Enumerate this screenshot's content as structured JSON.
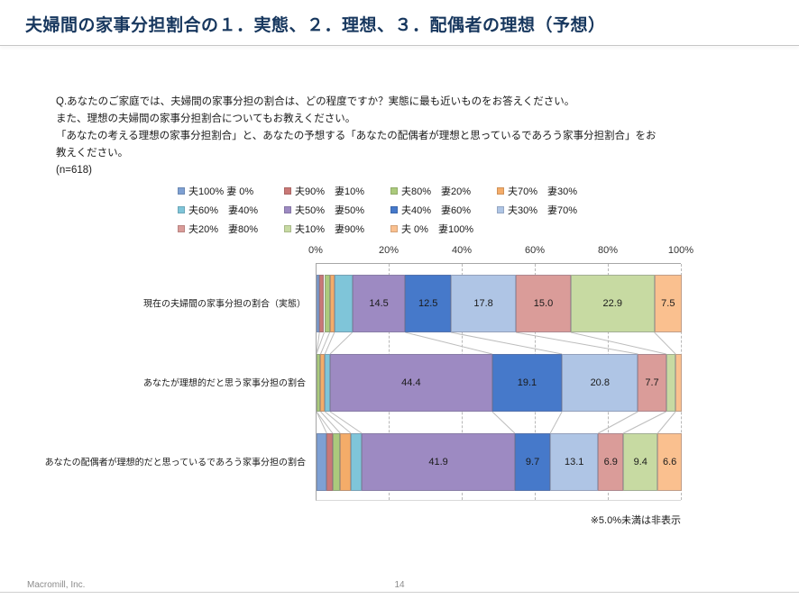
{
  "header": {
    "title": "夫婦間の家事分担割合の１．実態、２．理想、３．配偶者の理想（予想）",
    "title_color": "#17375E"
  },
  "question": {
    "lines": [
      "Q.あなたのご家庭では、夫婦間の家事分担の割合は、どの程度ですか？実態に最も近いものをお答えください。",
      "また、理想の夫婦間の家事分担割合についてもお教えください。",
      "「あなたの考える理想の家事分担割合」と、あなたの予想する「あなたの配偶者が理想と思っているであろう家事分担割合」をお",
      "教えください。",
      "(n=618)"
    ]
  },
  "chart_data": {
    "type": "bar",
    "subtype": "horizontal-stacked",
    "axis": {
      "position": "top",
      "min": 0,
      "max": 100,
      "ticks": [
        "0%",
        "20%",
        "40%",
        "60%",
        "80%",
        "100%"
      ]
    },
    "legend_position": "top",
    "legend_columns": 4,
    "label_threshold": 5.0,
    "note": "※5.0%未満は非表示",
    "categories": [
      "現在の夫婦間の家事分担の割合（実態）",
      "あなたが理想的だと思う家事分担の割合",
      "あなたの配偶者が理想的だと思っているであろう家事分担の割合"
    ],
    "series": [
      {
        "name": "夫100% 妻 0%",
        "color": "#7EA0D3",
        "values": [
          0.8,
          0.0,
          2.8
        ]
      },
      {
        "name": "夫90%　妻10%",
        "color": "#C97876",
        "values": [
          1.3,
          0.0,
          1.6
        ]
      },
      {
        "name": "夫80%　妻20%",
        "color": "#ABCA7C",
        "values": [
          1.5,
          1.1,
          2.1
        ]
      },
      {
        "name": "夫70%　妻30%",
        "color": "#F4AC69",
        "values": [
          1.3,
          1.2,
          2.9
        ]
      },
      {
        "name": "夫60%　妻40%",
        "color": "#7FC5D9",
        "values": [
          4.9,
          1.4,
          3.0
        ]
      },
      {
        "name": "夫50%　妻50%",
        "color": "#9D8AC2",
        "values": [
          14.5,
          44.4,
          41.9
        ]
      },
      {
        "name": "夫40%　妻60%",
        "color": "#4679CA",
        "values": [
          12.5,
          19.1,
          9.7
        ]
      },
      {
        "name": "夫30%　妻70%",
        "color": "#AFC5E5",
        "values": [
          17.8,
          20.8,
          13.1
        ]
      },
      {
        "name": "夫20%　妻80%",
        "color": "#DA9C99",
        "values": [
          15.0,
          7.7,
          6.9
        ]
      },
      {
        "name": "夫10%　妻90%",
        "color": "#C7DAA2",
        "values": [
          22.9,
          2.6,
          9.4
        ]
      },
      {
        "name": "夫 0%　妻100%",
        "color": "#FAC08F",
        "values": [
          7.5,
          1.7,
          6.6
        ]
      }
    ]
  },
  "footer": {
    "brand": "Macromill, Inc.",
    "page": "14"
  }
}
